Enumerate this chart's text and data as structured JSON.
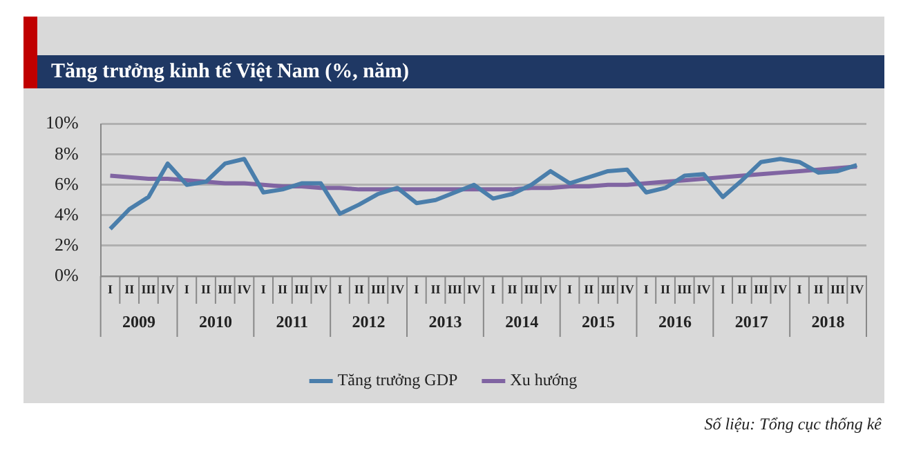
{
  "chart_data": {
    "type": "line",
    "title": "Tăng trưởng kinh tế Việt Nam (%, năm)",
    "categories": [
      "I",
      "II",
      "III",
      "IV",
      "I",
      "II",
      "III",
      "IV",
      "I",
      "II",
      "III",
      "IV",
      "I",
      "II",
      "III",
      "IV",
      "I",
      "II",
      "III",
      "IV",
      "I",
      "II",
      "III",
      "IV",
      "I",
      "II",
      "III",
      "IV",
      "I",
      "II",
      "III",
      "IV",
      "I",
      "II",
      "III",
      "IV",
      "I",
      "II",
      "III",
      "IV"
    ],
    "series": [
      {
        "name": "Tăng trưởng GDP",
        "color": "#4a7eab",
        "values": [
          3.1,
          4.4,
          5.2,
          7.4,
          6.0,
          6.2,
          7.4,
          7.7,
          5.5,
          5.7,
          6.1,
          6.1,
          4.1,
          4.7,
          5.4,
          5.8,
          4.8,
          5.0,
          5.5,
          6.0,
          5.1,
          5.4,
          6.0,
          6.9,
          6.1,
          6.5,
          6.9,
          7.0,
          5.5,
          5.8,
          6.6,
          6.7,
          5.2,
          6.3,
          7.5,
          7.7,
          7.5,
          6.8,
          6.9,
          7.3
        ]
      },
      {
        "name": "Xu hướng",
        "color": "#8064a2",
        "values": [
          6.6,
          6.5,
          6.4,
          6.4,
          6.3,
          6.2,
          6.1,
          6.1,
          6.0,
          5.9,
          5.9,
          5.8,
          5.8,
          5.7,
          5.7,
          5.7,
          5.7,
          5.7,
          5.7,
          5.7,
          5.7,
          5.7,
          5.8,
          5.8,
          5.9,
          5.9,
          6.0,
          6.0,
          6.1,
          6.2,
          6.3,
          6.4,
          6.5,
          6.6,
          6.7,
          6.8,
          6.9,
          7.0,
          7.1,
          7.2
        ]
      }
    ],
    "ylim": [
      0,
      10
    ],
    "yticks": [
      {
        "value": 0,
        "label": "0%"
      },
      {
        "value": 2,
        "label": "2%"
      },
      {
        "value": 4,
        "label": "4%"
      },
      {
        "value": 6,
        "label": "6%"
      },
      {
        "value": 8,
        "label": "8%"
      },
      {
        "value": 10,
        "label": "10%"
      }
    ],
    "grid": "y",
    "legend": "bottom",
    "marker": "none",
    "line_style": "solid",
    "annotations": [
      "2009",
      "2010",
      "2011",
      "2012",
      "2013",
      "2014",
      "2015",
      "2016",
      "2017",
      "2018",
      "Số liệu: Tổng cục thống kê"
    ]
  }
}
